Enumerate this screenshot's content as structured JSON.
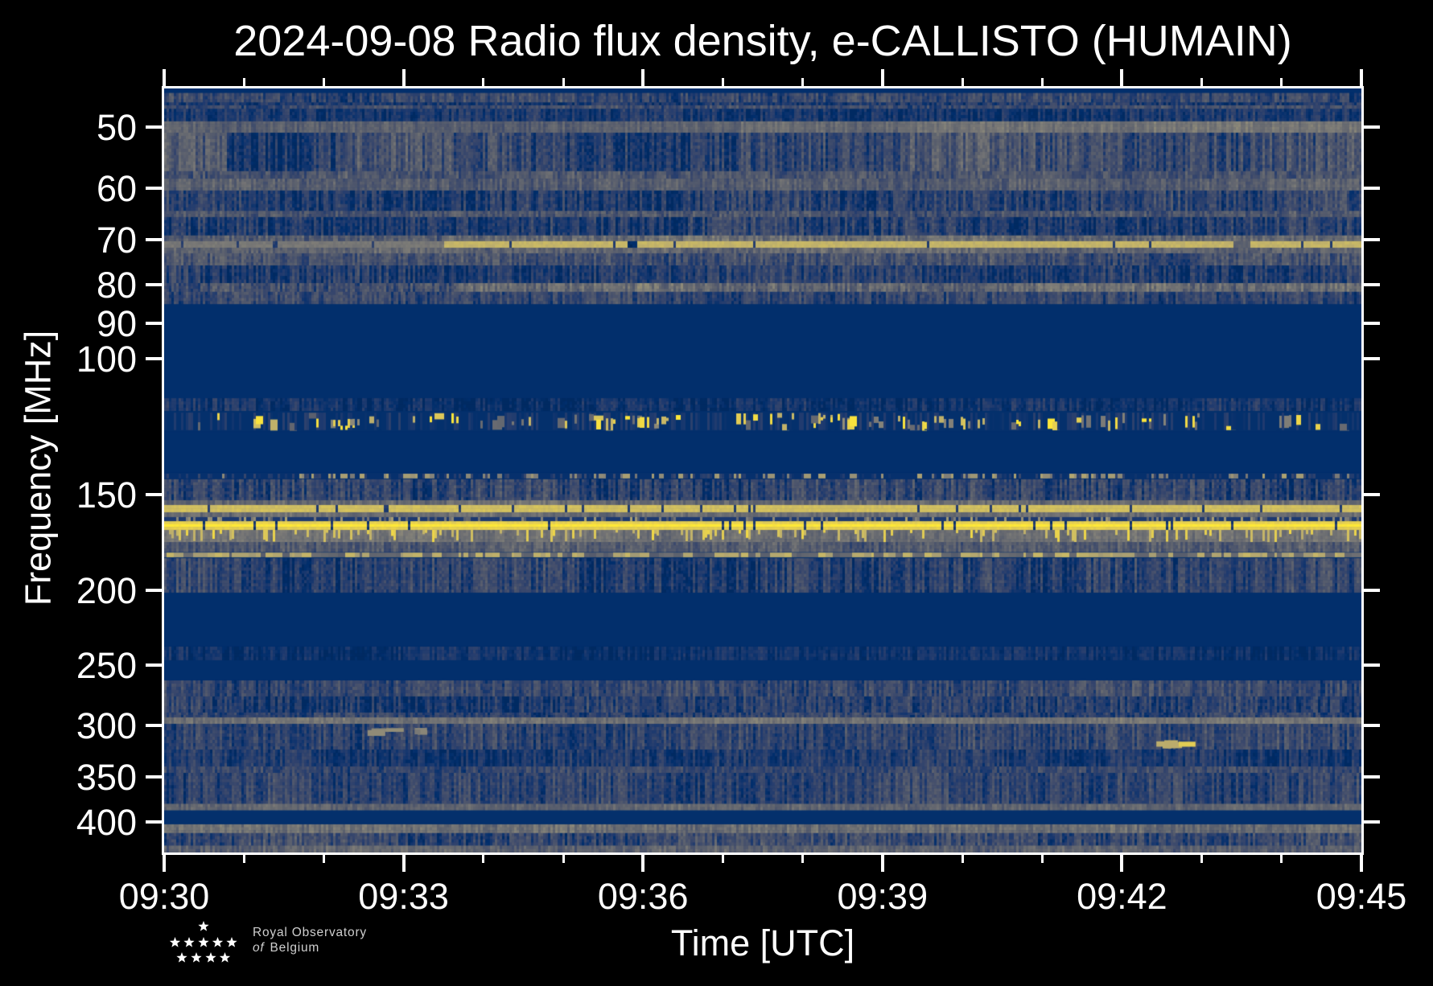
{
  "chart_data": {
    "type": "heatmap",
    "subtype": "radio-spectrogram",
    "title": "2024-09-08 Radio flux density, e-CALLISTO (HUMAIN)",
    "xlabel": "Time [UTC]",
    "ylabel": "Frequency [MHz]",
    "x_start_min": 570,
    "x_end_min": 585,
    "x_major_ticks": [
      {
        "label": "09:30",
        "min": 570
      },
      {
        "label": "09:33",
        "min": 573
      },
      {
        "label": "09:36",
        "min": 576
      },
      {
        "label": "09:39",
        "min": 579
      },
      {
        "label": "09:42",
        "min": 582
      },
      {
        "label": "09:45",
        "min": 585
      }
    ],
    "x_minor_interval_min": 1,
    "y_ticks_mhz": [
      50,
      60,
      70,
      80,
      90,
      100,
      150,
      200,
      250,
      300,
      350,
      400
    ],
    "y_range_mhz": [
      44.5,
      438.5
    ],
    "y_scale": "log",
    "y_inverted": true,
    "grid": false,
    "legend": "none",
    "colormap": "cividis",
    "colormap_stops": [
      "#00224e",
      "#002e6c",
      "#1e3a6f",
      "#35456c",
      "#47516c",
      "#575d6d",
      "#666970",
      "#757575",
      "#848279",
      "#948e77",
      "#a59c74",
      "#b7a96e",
      "#c8b866",
      "#dbc75a",
      "#eed649",
      "#fee838"
    ],
    "background_level": 0.07,
    "bands": [
      {
        "f0": 44.5,
        "f1": 45.1,
        "kind": "solid",
        "base": 0.07
      },
      {
        "f0": 45.1,
        "f1": 46.4,
        "kind": "noise",
        "base": 0.24,
        "noise": 0.12
      },
      {
        "f0": 46.4,
        "f1": 46.8,
        "kind": "noise",
        "base": 0.15,
        "noise": 0.1
      },
      {
        "f0": 46.8,
        "f1": 47.3,
        "kind": "noise",
        "base": 0.26,
        "noise": 0.1
      },
      {
        "f0": 47.3,
        "f1": 49.1,
        "kind": "noise",
        "base": 0.145,
        "noise": 0.1
      },
      {
        "f0": 49.1,
        "f1": 50.8,
        "kind": "noise",
        "base": 0.42,
        "noise": 0.08,
        "blocks": [
          [
            0,
            0.48,
            0.38
          ],
          [
            0.48,
            0.617,
            0.44
          ],
          [
            0.617,
            1,
            0.48
          ]
        ]
      },
      {
        "f0": 50.8,
        "f1": 57.0,
        "kind": "noise",
        "base": 0.28,
        "noise": 0.14,
        "blocks": [
          [
            0,
            0.051,
            0.36
          ],
          [
            0.051,
            0.158,
            0.18
          ],
          [
            0.158,
            0.292,
            0.29
          ],
          [
            0.292,
            0.48,
            0.2
          ],
          [
            0.48,
            0.617,
            0.27
          ],
          [
            0.617,
            1,
            0.31
          ]
        ]
      },
      {
        "f0": 57.0,
        "f1": 58.3,
        "kind": "noise",
        "base": 0.32,
        "noise": 0.11
      },
      {
        "f0": 58.3,
        "f1": 60.4,
        "kind": "noise",
        "base": 0.36,
        "noise": 0.1
      },
      {
        "f0": 60.4,
        "f1": 64.2,
        "kind": "noise",
        "base": 0.21,
        "noise": 0.13
      },
      {
        "f0": 64.2,
        "f1": 65.4,
        "kind": "noise",
        "base": 0.31,
        "noise": 0.11
      },
      {
        "f0": 65.4,
        "f1": 69.1,
        "kind": "noise",
        "base": 0.19,
        "noise": 0.13
      },
      {
        "f0": 69.1,
        "f1": 70.3,
        "kind": "noise",
        "base": 0.38,
        "noise": 0.12,
        "blocks": [
          [
            0,
            0.233,
            0.32
          ],
          [
            0.233,
            1,
            0.43
          ]
        ]
      },
      {
        "f0": 70.3,
        "f1": 71.7,
        "kind": "line",
        "level": 0.88,
        "cutp": 0.02,
        "cut": 0.25,
        "blocks": [
          [
            0,
            0.233,
            0.58
          ],
          [
            0.233,
            1,
            0.88
          ]
        ],
        "gaps": [
          [
            0.386,
            0.395,
            0.15
          ],
          [
            0.893,
            0.906,
            0.45
          ]
        ]
      },
      {
        "f0": 71.7,
        "f1": 72.9,
        "kind": "noise",
        "base": 0.4,
        "noise": 0.1
      },
      {
        "f0": 72.9,
        "f1": 75.6,
        "kind": "noise",
        "base": 0.28,
        "noise": 0.12
      },
      {
        "f0": 75.6,
        "f1": 79.7,
        "kind": "noise",
        "base": 0.19,
        "noise": 0.12
      },
      {
        "f0": 79.7,
        "f1": 81.8,
        "kind": "noise",
        "base": 0.32,
        "noise": 0.13,
        "blocks": [
          [
            0,
            0.24,
            0.28
          ],
          [
            0.24,
            1,
            0.44
          ]
        ]
      },
      {
        "f0": 81.8,
        "f1": 84.9,
        "kind": "noise",
        "base": 0.22,
        "noise": 0.12
      },
      {
        "f0": 84.9,
        "f1": 112.5,
        "kind": "solid",
        "base": 0.07
      },
      {
        "f0": 112.5,
        "f1": 116.9,
        "kind": "noise",
        "base": 0.12,
        "noise": 0.09
      },
      {
        "f0": 116.9,
        "f1": 124.4,
        "kind": "speckle",
        "base": 0.075,
        "prob": 0.16,
        "blocks": [
          [
            0,
            0.2,
            0.16
          ],
          [
            0.2,
            0.42,
            0.2
          ],
          [
            0.42,
            0.55,
            0.16
          ],
          [
            0.55,
            0.72,
            0.3
          ],
          [
            0.72,
            1,
            0.18
          ]
        ]
      },
      {
        "f0": 124.4,
        "f1": 140.7,
        "kind": "solid",
        "base": 0.07
      },
      {
        "f0": 140.7,
        "f1": 143.4,
        "kind": "dashsparse",
        "base": 0.08,
        "prob": 0.15,
        "level": 0.72
      },
      {
        "f0": 143.4,
        "f1": 152.7,
        "kind": "noise",
        "base": 0.21,
        "noise": 0.14
      },
      {
        "f0": 152.7,
        "f1": 154.9,
        "kind": "noise",
        "base": 0.43,
        "noise": 0.09
      },
      {
        "f0": 154.9,
        "f1": 158.3,
        "kind": "line",
        "level": 0.93,
        "cutp": 0.06,
        "cut": 0.25
      },
      {
        "f0": 158.3,
        "f1": 160.6,
        "kind": "noise",
        "base": 0.44,
        "noise": 0.08
      },
      {
        "f0": 160.6,
        "f1": 162.6,
        "kind": "streakrow",
        "base": 0.13,
        "prob": 0.3,
        "level": 0.5
      },
      {
        "f0": 162.6,
        "f1": 166.9,
        "kind": "line",
        "level": 1.0,
        "cutp": 0.05,
        "cut": 0.2
      },
      {
        "f0": 166.9,
        "f1": 173.1,
        "kind": "drip",
        "base": 0.44,
        "noise": 0.08,
        "prob": 0.2,
        "level": 0.85
      },
      {
        "f0": 173.1,
        "f1": 178.2,
        "kind": "noise",
        "base": 0.33,
        "noise": 0.11
      },
      {
        "f0": 178.2,
        "f1": 181.6,
        "kind": "dashes",
        "base": 0.38,
        "prob": 0.55,
        "level": 0.8
      },
      {
        "f0": 181.6,
        "f1": 201.4,
        "kind": "noise",
        "base": 0.21,
        "noise": 0.13
      },
      {
        "f0": 201.4,
        "f1": 236.7,
        "kind": "solid",
        "base": 0.07
      },
      {
        "f0": 236.7,
        "f1": 246.6,
        "kind": "noise",
        "base": 0.11,
        "noise": 0.07
      },
      {
        "f0": 246.6,
        "f1": 261.9,
        "kind": "solid",
        "base": 0.07
      },
      {
        "f0": 261.9,
        "f1": 274.8,
        "kind": "noise",
        "base": 0.25,
        "noise": 0.12
      },
      {
        "f0": 274.8,
        "f1": 288.4,
        "kind": "noise",
        "base": 0.19,
        "noise": 0.12
      },
      {
        "f0": 288.4,
        "f1": 292.6,
        "kind": "noise",
        "base": 0.22,
        "noise": 0.11
      },
      {
        "f0": 292.6,
        "f1": 298.3,
        "kind": "noise",
        "base": 0.47,
        "noise": 0.08
      },
      {
        "f0": 298.3,
        "f1": 322.2,
        "kind": "noise",
        "base": 0.23,
        "noise": 0.12
      },
      {
        "f0": 322.2,
        "f1": 338.9,
        "kind": "noise",
        "base": 0.16,
        "noise": 0.1
      },
      {
        "f0": 338.9,
        "f1": 345.5,
        "kind": "noise",
        "base": 0.24,
        "noise": 0.1
      },
      {
        "f0": 345.5,
        "f1": 379.0,
        "kind": "noise",
        "base": 0.22,
        "noise": 0.12
      },
      {
        "f0": 379.0,
        "f1": 386.5,
        "kind": "noise",
        "base": 0.4,
        "noise": 0.08
      },
      {
        "f0": 386.5,
        "f1": 403.0,
        "kind": "solid",
        "base": 0.075
      },
      {
        "f0": 403.0,
        "f1": 413.7,
        "kind": "noise",
        "base": 0.45,
        "noise": 0.1
      },
      {
        "f0": 413.7,
        "f1": 429.5,
        "kind": "noise",
        "base": 0.25,
        "noise": 0.13
      },
      {
        "f0": 429.5,
        "f1": 438.5,
        "kind": "noise",
        "base": 0.38,
        "noise": 0.1
      }
    ],
    "spots": [
      {
        "t0": 0.165,
        "t1": 0.236,
        "f0": 301.9,
        "f1": 309.5,
        "level": 0.55,
        "count": 7
      },
      {
        "t0": 0.825,
        "t1": 0.868,
        "f0": 311.9,
        "f1": 321.6,
        "level": 0.82,
        "count": 5
      }
    ]
  },
  "logo": {
    "line1": "Royal Observatory",
    "line2_italic": "of",
    "line2_rest": "Belgium"
  }
}
